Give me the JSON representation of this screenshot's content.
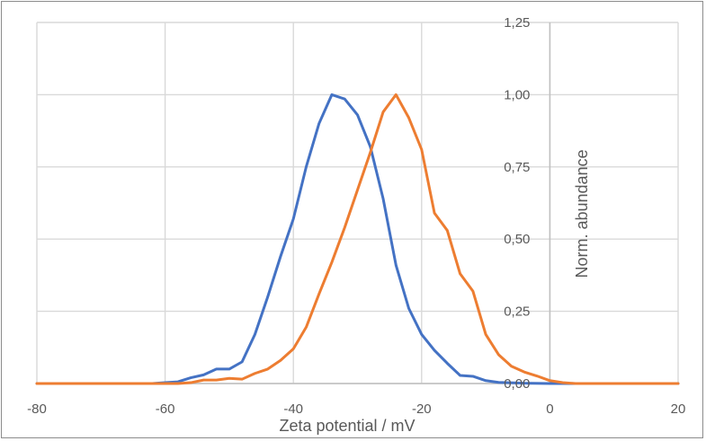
{
  "chart_data": {
    "type": "line",
    "xlabel": "Zeta potential / mV",
    "ylabel": "Norm. abundance",
    "xlim": [
      -80,
      20
    ],
    "ylim": [
      0,
      1.25
    ],
    "xticks": [
      "-80",
      "-60",
      "-40",
      "-20",
      "0",
      "20"
    ],
    "xtick_values": [
      -80,
      -60,
      -40,
      -20,
      0,
      20
    ],
    "yticks": [
      "0,00",
      "0,25",
      "0,50",
      "0,75",
      "1,00",
      "1,25"
    ],
    "ytick_values": [
      0,
      0.25,
      0.5,
      0.75,
      1.0,
      1.25
    ],
    "grid": true,
    "y_axis_position": "x=0",
    "series": [
      {
        "color": "#4472c4",
        "points": [
          [
            -80,
            0
          ],
          [
            -62,
            0
          ],
          [
            -60,
            0.003
          ],
          [
            -58,
            0.006
          ],
          [
            -56,
            0.02
          ],
          [
            -54,
            0.03
          ],
          [
            -52,
            0.05
          ],
          [
            -50,
            0.05
          ],
          [
            -48,
            0.075
          ],
          [
            -46,
            0.17
          ],
          [
            -44,
            0.3
          ],
          [
            -42,
            0.44
          ],
          [
            -40,
            0.57
          ],
          [
            -38,
            0.75
          ],
          [
            -36,
            0.9
          ],
          [
            -34,
            1.0
          ],
          [
            -32,
            0.985
          ],
          [
            -30,
            0.93
          ],
          [
            -28,
            0.82
          ],
          [
            -26,
            0.64
          ],
          [
            -24,
            0.41
          ],
          [
            -22,
            0.26
          ],
          [
            -20,
            0.17
          ],
          [
            -18,
            0.115
          ],
          [
            -16,
            0.07
          ],
          [
            -14,
            0.028
          ],
          [
            -12,
            0.025
          ],
          [
            -10,
            0.01
          ],
          [
            -8,
            0.004
          ],
          [
            -4,
            0.001
          ],
          [
            0,
            0
          ],
          [
            20,
            0
          ]
        ]
      },
      {
        "color": "#ed7d31",
        "points": [
          [
            -80,
            0
          ],
          [
            -58,
            0
          ],
          [
            -56,
            0.003
          ],
          [
            -54,
            0.012
          ],
          [
            -52,
            0.012
          ],
          [
            -50,
            0.018
          ],
          [
            -48,
            0.015
          ],
          [
            -46,
            0.035
          ],
          [
            -44,
            0.05
          ],
          [
            -42,
            0.08
          ],
          [
            -40,
            0.12
          ],
          [
            -38,
            0.195
          ],
          [
            -36,
            0.31
          ],
          [
            -34,
            0.42
          ],
          [
            -32,
            0.54
          ],
          [
            -30,
            0.67
          ],
          [
            -28,
            0.8
          ],
          [
            -26,
            0.94
          ],
          [
            -24,
            1.0
          ],
          [
            -22,
            0.92
          ],
          [
            -20,
            0.81
          ],
          [
            -18,
            0.59
          ],
          [
            -16,
            0.53
          ],
          [
            -14,
            0.38
          ],
          [
            -12,
            0.32
          ],
          [
            -10,
            0.17
          ],
          [
            -8,
            0.1
          ],
          [
            -6,
            0.06
          ],
          [
            -4,
            0.04
          ],
          [
            -2,
            0.026
          ],
          [
            0,
            0.01
          ],
          [
            2,
            0.003
          ],
          [
            4,
            0
          ],
          [
            20,
            0
          ]
        ]
      }
    ]
  }
}
